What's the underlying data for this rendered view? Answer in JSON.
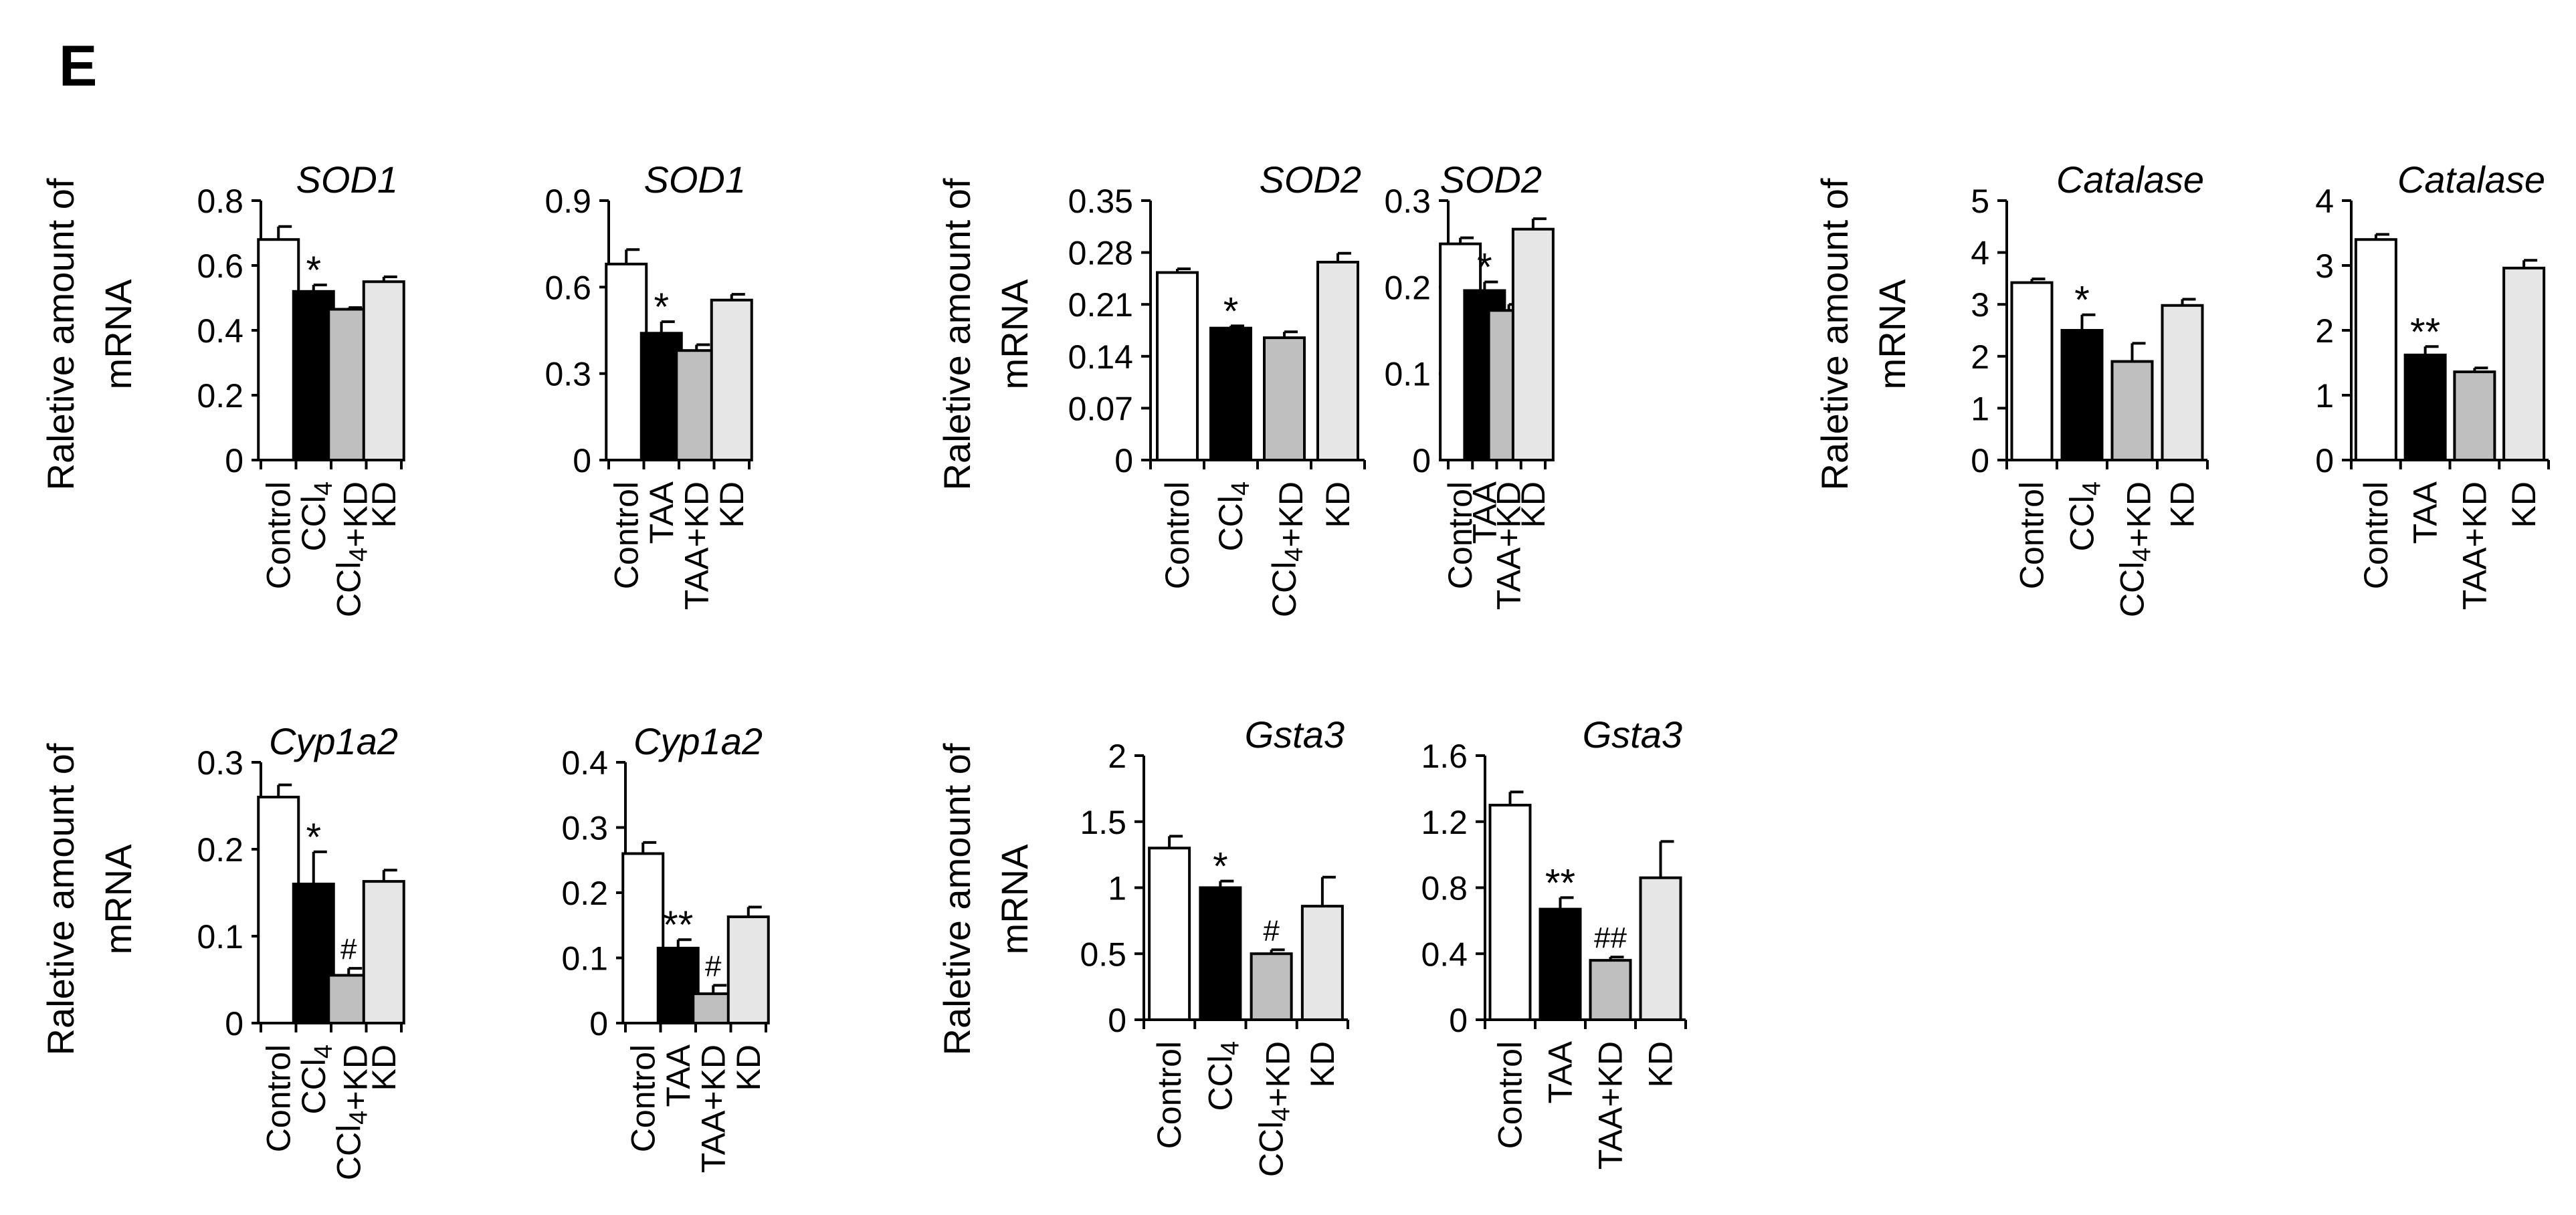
{
  "panel_label": "E",
  "y_axis_label_line1": "Raletive amount of",
  "y_axis_label_line2": "mRNA",
  "colors": {
    "Control": "#ffffff",
    "CCl4": "#000000",
    "TAA": "#000000",
    "CCl4+KD": "#bfbfbf",
    "TAA+KD": "#bfbfbf",
    "KD": "#e6e6e6"
  },
  "chart_data": [
    {
      "type": "bar",
      "title": "SOD1",
      "ylabel": "Raletive amount of mRNA",
      "ylim": [
        0,
        0.8
      ],
      "yticks": [
        "0",
        "0.2",
        "0.4",
        "0.6",
        "0.8"
      ],
      "categories": [
        "Control",
        "CCl4",
        "CCl4+KD",
        "KD"
      ],
      "values": [
        0.68,
        0.52,
        0.465,
        0.55
      ],
      "errors": [
        0.04,
        0.02,
        0.005,
        0.015
      ],
      "annotations": [
        "",
        "*",
        "",
        ""
      ]
    },
    {
      "type": "bar",
      "title": "SOD1",
      "ylabel": "",
      "ylim": [
        0,
        0.9
      ],
      "yticks": [
        "0",
        "0.3",
        "0.6",
        "0.9"
      ],
      "categories": [
        "Control",
        "TAA",
        "TAA+KD",
        "KD"
      ],
      "values": [
        0.68,
        0.44,
        0.38,
        0.555
      ],
      "errors": [
        0.05,
        0.04,
        0.02,
        0.02
      ],
      "annotations": [
        "",
        "*",
        "",
        ""
      ]
    },
    {
      "type": "bar",
      "title": "SOD2",
      "ylabel": "Raletive amount of mRNA",
      "ylim": [
        0,
        0.35
      ],
      "yticks": [
        "0",
        "0.07",
        "0.14",
        "0.21",
        "0.28",
        "0.35"
      ],
      "categories": [
        "Control",
        "CCl4",
        "CCl4+KD",
        "KD"
      ],
      "values": [
        0.253,
        0.178,
        0.165,
        0.267
      ],
      "errors": [
        0.005,
        0.003,
        0.008,
        0.012
      ],
      "annotations": [
        "",
        "*",
        "",
        ""
      ]
    },
    {
      "type": "bar",
      "title": "SOD2",
      "ylabel": "",
      "ylim": [
        0,
        0.3
      ],
      "yticks": [
        "0",
        "0.1",
        "0.2",
        "0.3"
      ],
      "categories": [
        "Control",
        "TAA",
        "TAA+KD",
        "KD"
      ],
      "values": [
        0.25,
        0.196,
        0.173,
        0.267
      ],
      "errors": [
        0.007,
        0.01,
        0.007,
        0.012
      ],
      "annotations": [
        "",
        "*",
        "",
        ""
      ]
    },
    {
      "type": "bar",
      "title": "Catalase",
      "ylabel": "Raletive amount of mRNA",
      "ylim": [
        0,
        5
      ],
      "yticks": [
        "0",
        "1",
        "2",
        "3",
        "4",
        "5"
      ],
      "categories": [
        "Control",
        "CCl4",
        "CCl4+KD",
        "KD"
      ],
      "values": [
        3.42,
        2.5,
        1.9,
        2.98
      ],
      "errors": [
        0.07,
        0.3,
        0.35,
        0.12
      ],
      "annotations": [
        "",
        "*",
        "",
        ""
      ]
    },
    {
      "type": "bar",
      "title": "Catalase",
      "ylabel": "",
      "ylim": [
        0,
        4
      ],
      "yticks": [
        "0",
        "1",
        "2",
        "3",
        "4"
      ],
      "categories": [
        "Control",
        "TAA",
        "TAA+KD",
        "KD"
      ],
      "values": [
        3.4,
        1.62,
        1.36,
        2.96
      ],
      "errors": [
        0.08,
        0.13,
        0.06,
        0.12
      ],
      "annotations": [
        "",
        "**",
        "",
        ""
      ]
    },
    {
      "type": "bar",
      "title": "Cyp1a2",
      "ylabel": "Raletive amount of mRNA",
      "ylim": [
        0,
        0.3
      ],
      "yticks": [
        "0",
        "0.1",
        "0.2",
        "0.3"
      ],
      "categories": [
        "Control",
        "CCl4",
        "CCl4+KD",
        "KD"
      ],
      "values": [
        0.26,
        0.16,
        0.055,
        0.163
      ],
      "errors": [
        0.014,
        0.037,
        0.008,
        0.013
      ],
      "annotations": [
        "",
        "*",
        "#",
        ""
      ]
    },
    {
      "type": "bar",
      "title": "Cyp1a2",
      "ylabel": "",
      "ylim": [
        0,
        0.4
      ],
      "yticks": [
        "0",
        "0.1",
        "0.2",
        "0.3",
        "0.4"
      ],
      "categories": [
        "Control",
        "TAA",
        "TAA+KD",
        "KD"
      ],
      "values": [
        0.26,
        0.115,
        0.045,
        0.163
      ],
      "errors": [
        0.017,
        0.013,
        0.013,
        0.015
      ],
      "annotations": [
        "",
        "**",
        "#",
        ""
      ]
    },
    {
      "type": "bar",
      "title": "Gsta3",
      "ylabel": "Raletive amount of mRNA",
      "ylim": [
        0,
        2
      ],
      "yticks": [
        "0",
        "0.5",
        "1",
        "1.5",
        "2"
      ],
      "categories": [
        "Control",
        "CCl4",
        "CCl4+KD",
        "KD"
      ],
      "values": [
        1.3,
        1.0,
        0.5,
        0.86
      ],
      "errors": [
        0.09,
        0.05,
        0.03,
        0.22
      ],
      "annotations": [
        "",
        "*",
        "#",
        ""
      ]
    },
    {
      "type": "bar",
      "title": "Gsta3",
      "ylabel": "",
      "ylim": [
        0,
        1.6
      ],
      "yticks": [
        "0",
        "0.4",
        "0.8",
        "1.2",
        "1.6"
      ],
      "categories": [
        "Control",
        "TAA",
        "TAA+KD",
        "KD"
      ],
      "values": [
        1.3,
        0.67,
        0.36,
        0.86
      ],
      "errors": [
        0.08,
        0.07,
        0.02,
        0.22
      ],
      "annotations": [
        "",
        "**",
        "##",
        ""
      ]
    }
  ]
}
